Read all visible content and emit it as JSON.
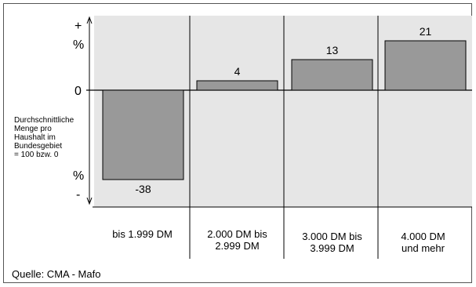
{
  "chart_data": {
    "type": "bar",
    "categories": [
      "bis 1.999 DM",
      "2.000 DM bis\n2.999 DM",
      "3.000 DM bis\n3.999 DM",
      "4.000 DM\nund mehr"
    ],
    "values": [
      -38,
      4,
      13,
      21
    ],
    "baseline_label": "0",
    "axis_top_labels": [
      "+",
      "%"
    ],
    "axis_bottom_labels": [
      "%",
      "-"
    ],
    "ylabel": "Durchschnittliche\nMenge pro\nHaushalt im\nBundesgebiet\n= 100 bzw. 0",
    "ylim": [
      -44,
      28
    ],
    "grid": false,
    "colors": {
      "bar": "#999999",
      "plot_background": "#e6e6e6",
      "stroke": "#000000"
    }
  },
  "source": "Quelle: CMA - Mafo"
}
